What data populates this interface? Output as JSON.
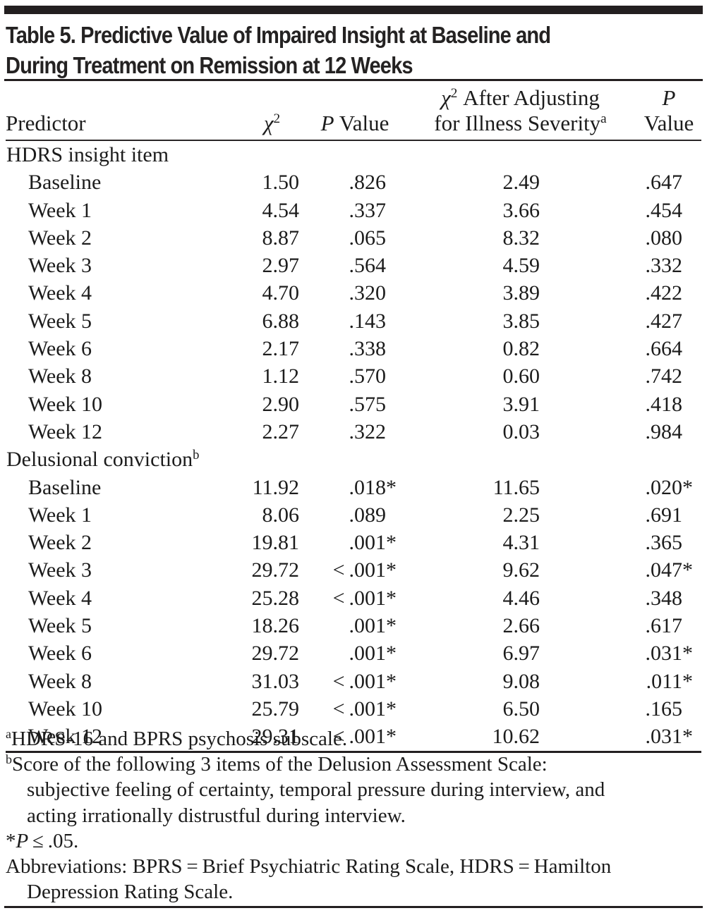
{
  "title": {
    "line1": "Table 5. Predictive Value of Impaired Insight at Baseline and",
    "line2": "During Treatment on Remission at 12 Weeks"
  },
  "colors": {
    "bar_and_rules": "#231f20",
    "text": "#1c1c1c",
    "background": "#ffffff"
  },
  "table": {
    "headers": {
      "predictor": "Predictor",
      "chi2": {
        "base": "χ",
        "sup": "2"
      },
      "p1": {
        "italic": "P",
        "rest": " Value"
      },
      "adj": {
        "line1": {
          "base": "χ",
          "sup": "2",
          "rest": " After Adjusting"
        },
        "line2": {
          "text": "for Illness Severity",
          "sup": "a"
        }
      },
      "p2": {
        "italic": "P",
        "line2": "Value"
      }
    },
    "sections": [
      {
        "label": "HDRS insight item",
        "sup": "",
        "rows": [
          {
            "label": "Baseline",
            "chi2": "1.50",
            "p": ".826",
            "p_star": "",
            "adj": "2.49",
            "p_adj": ".647",
            "p_adj_star": ""
          },
          {
            "label": "Week 1",
            "chi2": "4.54",
            "p": ".337",
            "p_star": "",
            "adj": "3.66",
            "p_adj": ".454",
            "p_adj_star": ""
          },
          {
            "label": "Week 2",
            "chi2": "8.87",
            "p": ".065",
            "p_star": "",
            "adj": "8.32",
            "p_adj": ".080",
            "p_adj_star": ""
          },
          {
            "label": "Week 3",
            "chi2": "2.97",
            "p": ".564",
            "p_star": "",
            "adj": "4.59",
            "p_adj": ".332",
            "p_adj_star": ""
          },
          {
            "label": "Week 4",
            "chi2": "4.70",
            "p": ".320",
            "p_star": "",
            "adj": "3.89",
            "p_adj": ".422",
            "p_adj_star": ""
          },
          {
            "label": "Week 5",
            "chi2": "6.88",
            "p": ".143",
            "p_star": "",
            "adj": "3.85",
            "p_adj": ".427",
            "p_adj_star": ""
          },
          {
            "label": "Week 6",
            "chi2": "2.17",
            "p": ".338",
            "p_star": "",
            "adj": "0.82",
            "p_adj": ".664",
            "p_adj_star": ""
          },
          {
            "label": "Week 8",
            "chi2": "1.12",
            "p": ".570",
            "p_star": "",
            "adj": "0.60",
            "p_adj": ".742",
            "p_adj_star": ""
          },
          {
            "label": "Week 10",
            "chi2": "2.90",
            "p": ".575",
            "p_star": "",
            "adj": "3.91",
            "p_adj": ".418",
            "p_adj_star": ""
          },
          {
            "label": "Week 12",
            "chi2": "2.27",
            "p": ".322",
            "p_star": "",
            "adj": "0.03",
            "p_adj": ".984",
            "p_adj_star": ""
          }
        ]
      },
      {
        "label": "Delusional conviction",
        "sup": "b",
        "rows": [
          {
            "label": "Baseline",
            "chi2": "11.92",
            "p": ".018",
            "p_star": "*",
            "adj": "11.65",
            "p_adj": ".020",
            "p_adj_star": "*"
          },
          {
            "label": "Week 1",
            "chi2": "8.06",
            "p": ".089",
            "p_star": "",
            "adj": "2.25",
            "p_adj": ".691",
            "p_adj_star": ""
          },
          {
            "label": "Week 2",
            "chi2": "19.81",
            "p": ".001",
            "p_star": "*",
            "adj": "4.31",
            "p_adj": ".365",
            "p_adj_star": ""
          },
          {
            "label": "Week 3",
            "chi2": "29.72",
            "p": "< .001",
            "p_star": "*",
            "adj": "9.62",
            "p_adj": ".047",
            "p_adj_star": "*"
          },
          {
            "label": "Week 4",
            "chi2": "25.28",
            "p": "< .001",
            "p_star": "*",
            "adj": "4.46",
            "p_adj": ".348",
            "p_adj_star": ""
          },
          {
            "label": "Week 5",
            "chi2": "18.26",
            "p": ".001",
            "p_star": "*",
            "adj": "2.66",
            "p_adj": ".617",
            "p_adj_star": ""
          },
          {
            "label": "Week 6",
            "chi2": "29.72",
            "p": ".001",
            "p_star": "*",
            "adj": "6.97",
            "p_adj": ".031",
            "p_adj_star": "*"
          },
          {
            "label": "Week 8",
            "chi2": "31.03",
            "p": "< .001",
            "p_star": "*",
            "adj": "9.08",
            "p_adj": ".011",
            "p_adj_star": "*"
          },
          {
            "label": "Week 10",
            "chi2": "25.79",
            "p": "< .001",
            "p_star": "*",
            "adj": "6.50",
            "p_adj": ".165",
            "p_adj_star": ""
          },
          {
            "label": "Week 12",
            "chi2": "29.31",
            "p": "< .001",
            "p_star": "*",
            "adj": "10.62",
            "p_adj": ".031",
            "p_adj_star": "*"
          }
        ]
      }
    ]
  },
  "footnotes": {
    "lines": [
      {
        "sup": "a",
        "text": "HDRS-16 and BPRS psychosis subscale."
      },
      {
        "sup": "b",
        "text": "Score of the following 3 items of the Delusion Assessment Scale:"
      },
      {
        "text": "subjective feeling of certainty, temporal pressure during interview, and",
        "indent": true
      },
      {
        "text": "acting irrationally distrustful during interview.",
        "indent": true
      },
      {
        "pre": "*",
        "it": "P",
        "text": " ≤ .05."
      },
      {
        "text": "Abbreviations: BPRS = Brief Psychiatric Rating Scale, HDRS = Hamilton"
      },
      {
        "text": "Depression Rating Scale.",
        "indent": true
      }
    ]
  }
}
